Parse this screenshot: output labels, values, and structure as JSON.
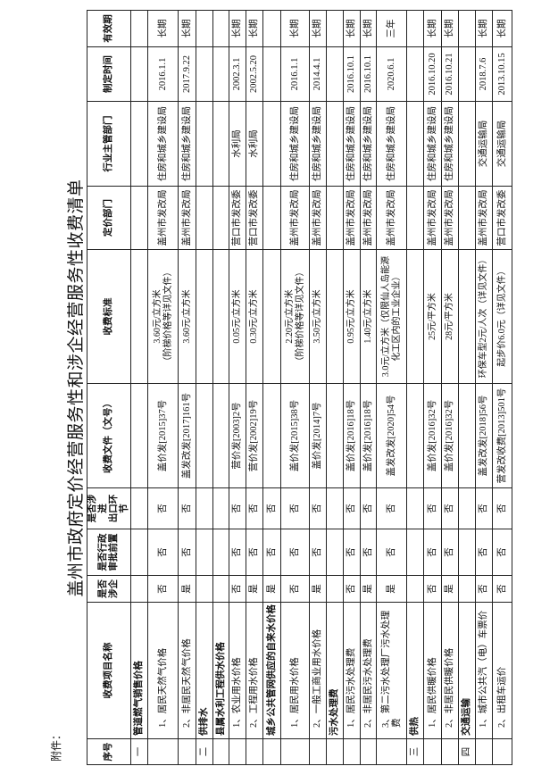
{
  "attachment_label": "附件：",
  "title": "盖州市政府定价经营服务性和涉企经营服务性收费清单",
  "headers": [
    "序号",
    "收费项目名称",
    "是否\n涉企",
    "是否行政\n审批前置",
    "是否涉进\n出口环节",
    "收费文件（文号）",
    "收费标准",
    "定价部门",
    "行业主管部门",
    "制定时间",
    "有效期"
  ],
  "rows": [
    {
      "section": true,
      "cells": [
        "一",
        "管道燃气销售价格",
        "",
        "",
        "",
        "",
        "",
        "",
        "",
        "",
        ""
      ]
    },
    {
      "cells": [
        "",
        "1、居民天然气价格",
        "否",
        "否",
        "否",
        "盖价发[2015]37号",
        "3.60元/立方米\n（阶梯价格等详见文件）",
        "盖州市发改局",
        "住房和城乡建设局",
        "2016.1.1",
        "长期"
      ]
    },
    {
      "cells": [
        "",
        "2、非居民天然气价格",
        "是",
        "否",
        "否",
        "盖发改发[2017]161号",
        "3.60元/立方米",
        "盖州市发改局",
        "住房和城乡建设局",
        "2017.9.22",
        "长期"
      ]
    },
    {
      "section": true,
      "cells": [
        "二",
        "供排水",
        "",
        "",
        "",
        "",
        "",
        "",
        "",
        "",
        ""
      ]
    },
    {
      "section": true,
      "cells": [
        "",
        "县属水利工程供水价格",
        "",
        "",
        "",
        "",
        "",
        "",
        "",
        "",
        ""
      ]
    },
    {
      "cells": [
        "",
        "1、农业用水价格",
        "否",
        "否",
        "否",
        "营价发[2003]2号",
        "0.05元/立方米",
        "营口市发改委",
        "水利局",
        "2002.3.1",
        "长期"
      ]
    },
    {
      "cells": [
        "",
        "2、工程用水价格",
        "是",
        "否",
        "否",
        "营价发[2002]19号",
        "0.30元/立方米",
        "营口市发改委",
        "水利局",
        "2002.5.20",
        "长期"
      ]
    },
    {
      "section": true,
      "cells": [
        "",
        "城乡公共管网供应的自来水价格",
        "是",
        "否",
        "否",
        "",
        "",
        "",
        "",
        "",
        ""
      ]
    },
    {
      "cells": [
        "",
        "1、居民用水价格",
        "否",
        "否",
        "否",
        "盖价发[2015]38号",
        "2.20元/立方米\n（阶梯价格等详见文件）",
        "盖州市发改局",
        "住房和城乡建设局",
        "2016.1.1",
        "长期"
      ]
    },
    {
      "cells": [
        "",
        "2、一般工商业用水价格",
        "是",
        "否",
        "否",
        "盖价发[2014]7号",
        "3.50元/立方米",
        "盖州市发改局",
        "住房和城乡建设局",
        "2014.4.1",
        "长期"
      ]
    },
    {
      "section": true,
      "cells": [
        "",
        "污水处理费",
        "",
        "",
        "",
        "",
        "",
        "",
        "",
        "",
        ""
      ]
    },
    {
      "cells": [
        "",
        "1、居民污水处理费",
        "否",
        "否",
        "否",
        "盖价发[2016]18号",
        "0.95元/立方米",
        "盖州市发改局",
        "住房和城乡建设局",
        "2016.10.1",
        "长期"
      ]
    },
    {
      "cells": [
        "",
        "2、非居民污水处理费",
        "是",
        "否",
        "否",
        "盖价发[2016]18号",
        "1.40元/立方米",
        "盖州市发改局",
        "住房和城乡建设局",
        "2016.10.1",
        "长期"
      ]
    },
    {
      "cells": [
        "",
        "3、第二污水处理厂污水处理费",
        "是",
        "否",
        "否",
        "盖发改发[2020]54号",
        "3.0元/立方米（仅限仙人岛能源化工区内的工业企业）",
        "盖州市发改局",
        "住房和城乡建设局",
        "2020.6.1",
        "三年"
      ]
    },
    {
      "section": true,
      "cells": [
        "三",
        "供热",
        "",
        "",
        "",
        "",
        "",
        "",
        "",
        "",
        ""
      ]
    },
    {
      "cells": [
        "",
        "1、居民供暖价格",
        "否",
        "否",
        "否",
        "盖价发[2016]32号",
        "25元/平方米",
        "盖州市发改局",
        "住房和城乡建设局",
        "2016.10.20",
        "长期"
      ]
    },
    {
      "cells": [
        "",
        "2、非居民供暖价格",
        "是",
        "否",
        "否",
        "盖价发[2016]32号",
        "28元/平方米",
        "盖州市发改局",
        "住房和城乡建设局",
        "2016.10.21",
        "长期"
      ]
    },
    {
      "section": true,
      "cells": [
        "四",
        "交通运输",
        "",
        "",
        "",
        "",
        "",
        "",
        "",
        "",
        ""
      ]
    },
    {
      "cells": [
        "",
        "1、城市公共汽（电）车票价",
        "否",
        "否",
        "否",
        "盖发改发[2018]56号",
        "环保车型2元/人次（详见文件）",
        "盖州市发改局",
        "交通运输局",
        "2018.7.6",
        "长期"
      ]
    },
    {
      "cells": [
        "",
        "2、出租车运价",
        "否",
        "否",
        "否",
        "营发改收费[2013]501号",
        "起步价6.0元（详见文件）",
        "营口市发改委",
        "交通运输局",
        "2013.10.15",
        "长期"
      ]
    }
  ]
}
